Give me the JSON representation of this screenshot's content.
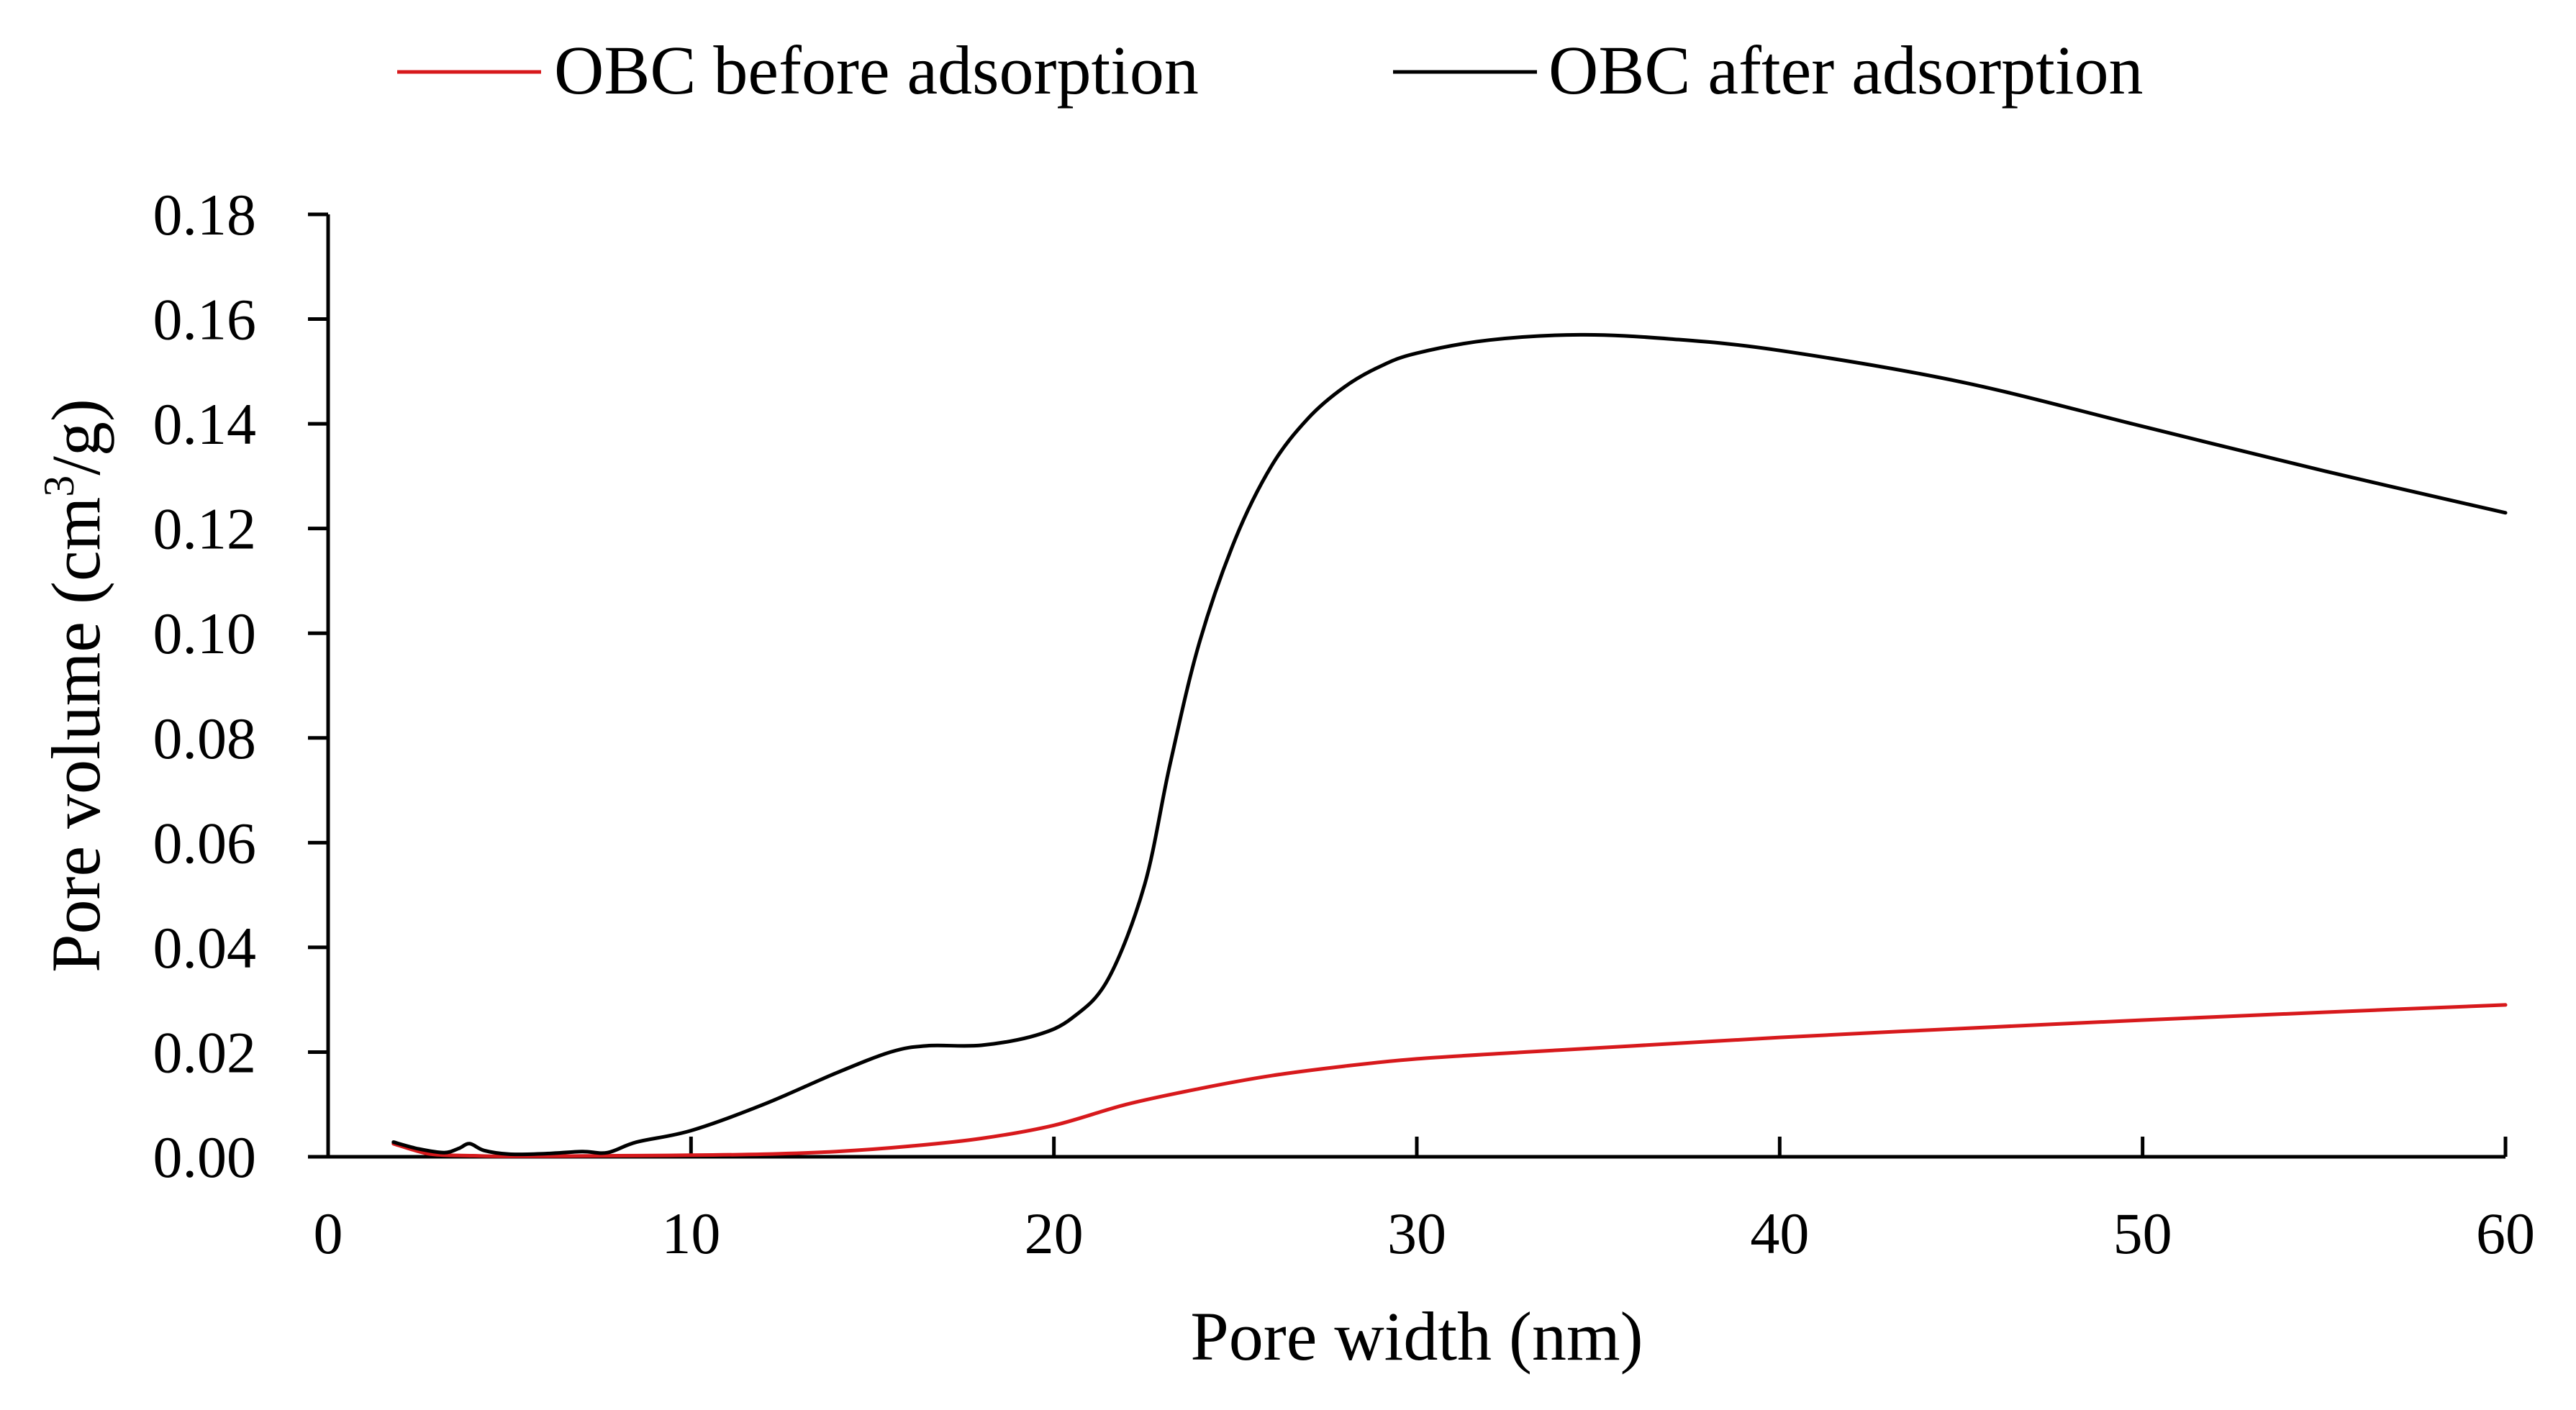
{
  "chart_data": {
    "type": "line",
    "title": "",
    "xlabel": "Pore width (nm)",
    "ylabel_main": "Pore volume (cm",
    "ylabel_sup": "3",
    "ylabel_end": "/g)",
    "xlim": [
      0,
      60
    ],
    "ylim": [
      0,
      0.18
    ],
    "x_ticks": [
      "0",
      "10",
      "20",
      "30",
      "40",
      "50",
      "60"
    ],
    "y_ticks": [
      "0.00",
      "0.02",
      "0.04",
      "0.06",
      "0.08",
      "0.10",
      "0.12",
      "0.14",
      "0.16",
      "0.18"
    ],
    "grid": false,
    "legend_position": "top",
    "series": [
      {
        "name": "OBC before adsorption",
        "color": "#d7191c",
        "points": [
          [
            1.8,
            0.0025
          ],
          [
            2.5,
            0.001
          ],
          [
            3.0,
            0.0004
          ],
          [
            4.0,
            0.0002
          ],
          [
            5.0,
            0.0001
          ],
          [
            8.0,
            0.0002
          ],
          [
            10.0,
            0.0003
          ],
          [
            12.0,
            0.0005
          ],
          [
            14.0,
            0.001
          ],
          [
            16.0,
            0.002
          ],
          [
            18.0,
            0.0035
          ],
          [
            20.0,
            0.006
          ],
          [
            22.0,
            0.01
          ],
          [
            24.0,
            0.013
          ],
          [
            26.0,
            0.0155
          ],
          [
            28.0,
            0.0173
          ],
          [
            30.0,
            0.0187
          ],
          [
            33.0,
            0.02
          ],
          [
            36.0,
            0.0212
          ],
          [
            40.0,
            0.0228
          ],
          [
            45.0,
            0.0245
          ],
          [
            50.0,
            0.0261
          ],
          [
            55.0,
            0.0276
          ],
          [
            60.0,
            0.029
          ]
        ]
      },
      {
        "name": "OBC after adsorption",
        "color": "#000000",
        "points": [
          [
            1.8,
            0.0028
          ],
          [
            2.5,
            0.0015
          ],
          [
            3.2,
            0.0008
          ],
          [
            3.6,
            0.0016
          ],
          [
            3.9,
            0.0025
          ],
          [
            4.3,
            0.0012
          ],
          [
            5.0,
            0.0005
          ],
          [
            6.0,
            0.0006
          ],
          [
            7.0,
            0.001
          ],
          [
            7.7,
            0.0008
          ],
          [
            8.5,
            0.0028
          ],
          [
            10.0,
            0.005
          ],
          [
            12.0,
            0.01
          ],
          [
            14.0,
            0.016
          ],
          [
            15.5,
            0.02
          ],
          [
            16.5,
            0.0212
          ],
          [
            18.0,
            0.0213
          ],
          [
            19.5,
            0.0232
          ],
          [
            20.5,
            0.0265
          ],
          [
            21.5,
            0.034
          ],
          [
            22.5,
            0.052
          ],
          [
            23.2,
            0.075
          ],
          [
            24.0,
            0.098
          ],
          [
            25.0,
            0.118
          ],
          [
            26.0,
            0.132
          ],
          [
            27.0,
            0.141
          ],
          [
            28.0,
            0.147
          ],
          [
            29.0,
            0.151
          ],
          [
            30.0,
            0.1535
          ],
          [
            32.0,
            0.156
          ],
          [
            34.5,
            0.157
          ],
          [
            37.0,
            0.1562
          ],
          [
            40.0,
            0.154
          ],
          [
            45.0,
            0.148
          ],
          [
            50.0,
            0.1395
          ],
          [
            55.0,
            0.131
          ],
          [
            60.0,
            0.123
          ]
        ]
      }
    ]
  }
}
